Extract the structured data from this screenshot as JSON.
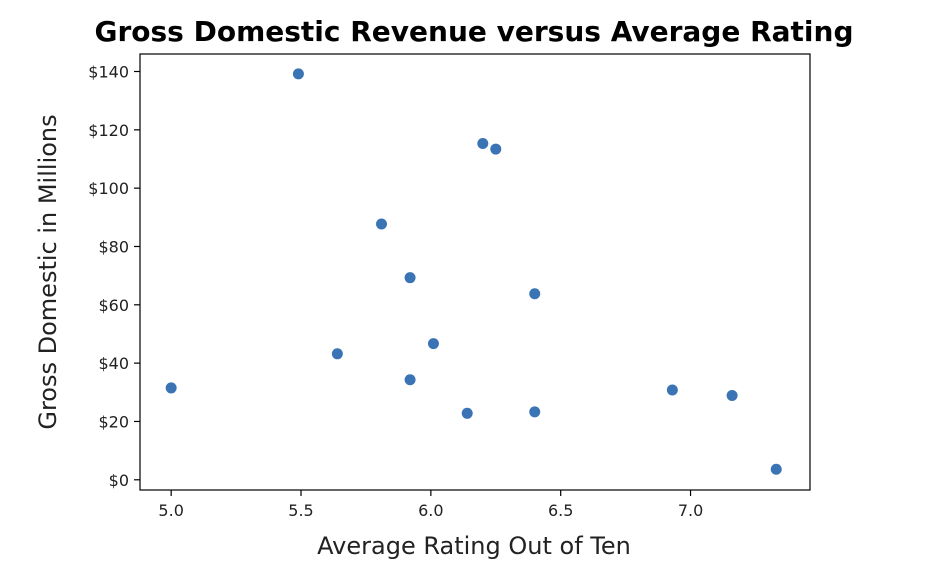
{
  "chart_data": {
    "type": "scatter",
    "title": "Gross Domestic Revenue versus Average Rating",
    "xlabel": "Average Rating Out of Ten",
    "ylabel": "Gross Domestic in Millions",
    "xlim": [
      4.88,
      7.46
    ],
    "ylim": [
      -3.5,
      146
    ],
    "xticks": [
      5.0,
      5.5,
      6.0,
      6.5,
      7.0
    ],
    "xtick_labels": [
      "5.0",
      "5.5",
      "6.0",
      "6.5",
      "7.0"
    ],
    "yticks": [
      0,
      20,
      40,
      60,
      80,
      100,
      120,
      140
    ],
    "ytick_labels": [
      "$0",
      "$20",
      "$40",
      "$60",
      "$80",
      "$100",
      "$120",
      "$140"
    ],
    "grid": false,
    "marker_color": "#3a74b4",
    "points": [
      {
        "x": 5.0,
        "y": 31.5
      },
      {
        "x": 5.49,
        "y": 139.2
      },
      {
        "x": 5.64,
        "y": 43.2
      },
      {
        "x": 5.81,
        "y": 87.7
      },
      {
        "x": 5.92,
        "y": 69.3
      },
      {
        "x": 5.92,
        "y": 34.3
      },
      {
        "x": 6.01,
        "y": 46.7
      },
      {
        "x": 6.14,
        "y": 22.8
      },
      {
        "x": 6.2,
        "y": 115.3
      },
      {
        "x": 6.25,
        "y": 113.4
      },
      {
        "x": 6.4,
        "y": 63.8
      },
      {
        "x": 6.4,
        "y": 23.3
      },
      {
        "x": 6.93,
        "y": 30.8
      },
      {
        "x": 7.16,
        "y": 28.9
      },
      {
        "x": 7.33,
        "y": 3.6
      }
    ]
  }
}
